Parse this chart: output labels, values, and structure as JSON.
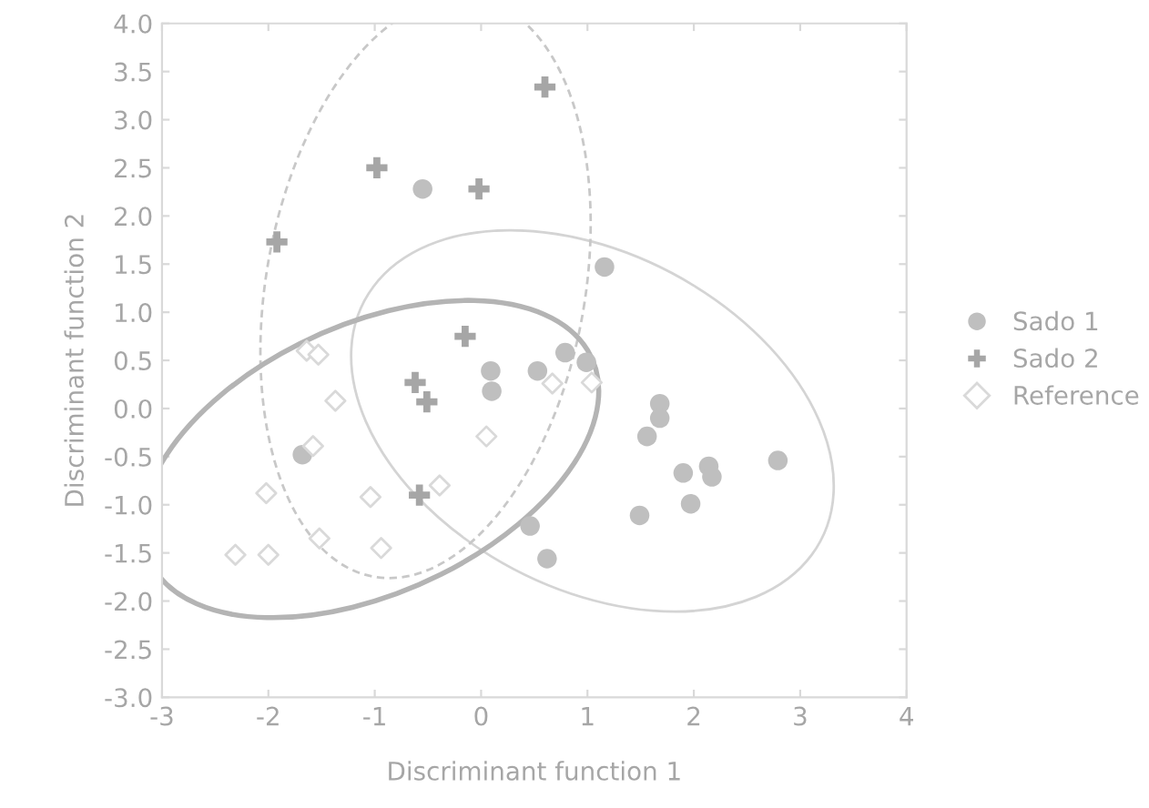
{
  "chart_data": {
    "type": "scatter",
    "xlabel": "Discriminant function 1",
    "ylabel": "Discriminant function 2",
    "xlim": [
      -3,
      4
    ],
    "xticks": [
      -3,
      -2,
      -1,
      0,
      1,
      2,
      3,
      4
    ],
    "ylim": [
      -3.0,
      4.0
    ],
    "yticks": [
      {
        "value": -3.0,
        "label": "-3.0"
      },
      {
        "value": -2.5,
        "label": "-2.5"
      },
      {
        "value": -2.0,
        "label": "-2.0"
      },
      {
        "value": -1.5,
        "label": "-1.5"
      },
      {
        "value": -1.0,
        "label": "-1.0"
      },
      {
        "value": -0.5,
        "label": "-0.5"
      },
      {
        "value": 0.0,
        "label": "0.0"
      },
      {
        "value": 0.5,
        "label": "0.5"
      },
      {
        "value": 1.0,
        "label": "1.0"
      },
      {
        "value": 1.5,
        "label": "1.5"
      },
      {
        "value": 2.0,
        "label": "2.0"
      },
      {
        "value": 2.5,
        "label": "2.5"
      },
      {
        "value": 3.0,
        "label": "3.0"
      },
      {
        "value": 3.5,
        "label": "3.5"
      },
      {
        "value": 4.0,
        "label": "4.0"
      }
    ],
    "grid": false,
    "legend": "right",
    "series": [
      {
        "name": "Sado 1",
        "marker": "circle",
        "color": "#bfbfbf",
        "x": [
          -0.55,
          1.16,
          0.79,
          0.99,
          0.53,
          0.09,
          0.1,
          1.68,
          1.68,
          1.56,
          -1.68,
          2.14,
          2.17,
          1.9,
          2.79,
          1.97,
          1.49,
          0.46,
          0.62
        ],
        "values": [
          2.28,
          1.47,
          0.58,
          0.48,
          0.39,
          0.39,
          0.18,
          0.05,
          -0.1,
          -0.29,
          -0.48,
          -0.6,
          -0.71,
          -0.67,
          -0.54,
          -0.99,
          -1.11,
          -1.22,
          -1.56
        ]
      },
      {
        "name": "Sado 2",
        "marker": "cross",
        "color": "#a6a6a6",
        "x": [
          0.6,
          -0.98,
          -0.02,
          -1.92,
          -0.15,
          -0.62,
          -0.51,
          -0.58
        ],
        "values": [
          3.34,
          2.5,
          2.28,
          1.73,
          0.75,
          0.27,
          0.07,
          -0.9
        ]
      },
      {
        "name": "Reference",
        "marker": "diamond",
        "color": "#d9d9d9",
        "x": [
          -1.64,
          -1.53,
          -1.37,
          -1.58,
          -2.02,
          -1.04,
          -2.31,
          -2.0,
          -1.52,
          -0.94,
          -0.39,
          0.05,
          0.67,
          1.04
        ],
        "values": [
          0.6,
          0.56,
          0.08,
          -0.39,
          -0.88,
          -0.92,
          -1.52,
          -1.52,
          -1.35,
          -1.45,
          -0.8,
          -0.29,
          0.26,
          0.27
        ]
      }
    ]
  }
}
